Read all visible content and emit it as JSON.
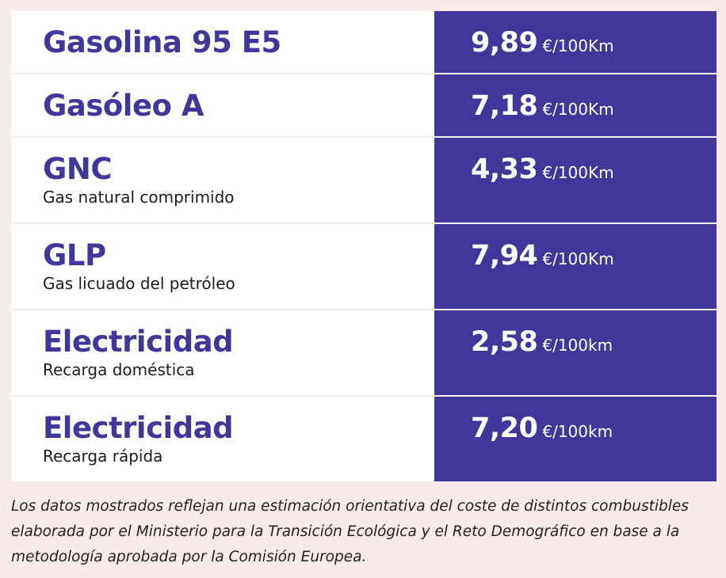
{
  "rows": [
    {
      "name": "Gasolina 95 E5",
      "price": "9,89",
      "unit": "€/100Km"
    },
    {
      "name": "Gasóleo A",
      "price": "7,18",
      "unit": "€/100Km"
    },
    {
      "name": "GNC",
      "subtitle": "Gas natural comprimido",
      "price": "4,33",
      "unit": "€/100Km"
    },
    {
      "name": "GLP",
      "subtitle": "Gas licuado del petróleo",
      "price": "7,94",
      "unit": "€/100Km"
    },
    {
      "name": "Electricidad",
      "subtitle": "Recarga doméstica",
      "price": "2,58",
      "unit": "€/100km"
    },
    {
      "name": "Electricidad",
      "subtitle": "Recarga rápida",
      "price": "7,20",
      "unit": "€/100km"
    }
  ],
  "footnote": "Los datos mostrados reflejan una estimación orientativa del coste de distintos combustibles elaborada por el Ministerio para la Transición Ecológica y el Reto Demográfico en base a la metodología aprobada por la Comisión Europea.",
  "colors": {
    "accent": "#41379a",
    "page_background": "#f7ecea",
    "cell_background": "#ffffff"
  }
}
